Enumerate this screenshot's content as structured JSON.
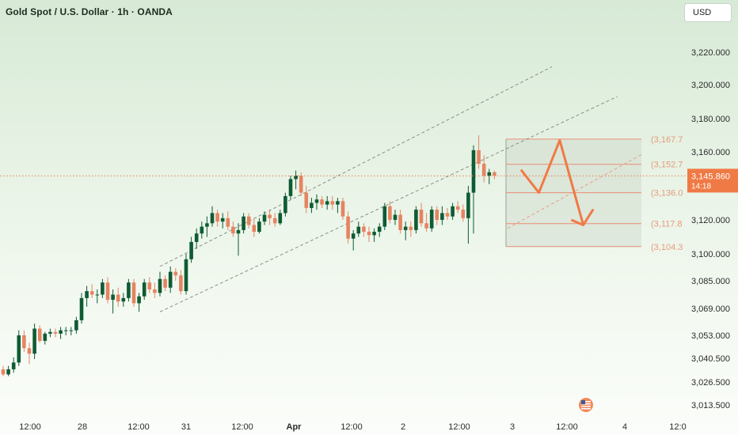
{
  "header": {
    "title": "Gold Spot / U.S. Dollar · 1h · OANDA",
    "currency": "USD"
  },
  "price_tag": {
    "price": "3,145.860",
    "countdown": "14:18"
  },
  "colors": {
    "up": "#0e5b34",
    "down": "#e58462",
    "projection": "#f07a45",
    "channel": "#8a8f86",
    "level_line": "#e98e74",
    "price_tag_bg": "#f07a45"
  },
  "icons": {
    "flag": "us-flag-icon"
  },
  "chart_data": {
    "type": "candlestick",
    "title": "Gold Spot / U.S. Dollar · 1h · OANDA",
    "y_ticks": [
      "3,220.000",
      "3,200.000",
      "3,180.000",
      "3,160.000",
      "3,120.000",
      "3,100.000",
      "3,085.000",
      "3,069.000",
      "3,053.000",
      "3,040.500",
      "3,026.500",
      "3,013.500"
    ],
    "x_ticks": [
      "12:00",
      "28",
      "12:00",
      "31",
      "12:00",
      "Apr",
      "12:00",
      "2",
      "12:00",
      "3",
      "12:00",
      "4",
      "12:0"
    ],
    "last_price": 3145.86,
    "levels": [
      {
        "label": "(3,167.7",
        "value": 3167.7
      },
      {
        "label": "(3,152.7",
        "value": 3152.7
      },
      {
        "label": "(3,136.0",
        "value": 3136.0
      },
      {
        "label": "(3,117.8",
        "value": 3117.8
      },
      {
        "label": "(3,104.3",
        "value": 3104.3
      }
    ],
    "candles": [
      [
        3034,
        3036,
        3030,
        3031
      ],
      [
        3031,
        3036,
        3030,
        3034
      ],
      [
        3034,
        3041,
        3032,
        3038
      ],
      [
        3038,
        3056,
        3036,
        3053
      ],
      [
        3053,
        3056,
        3044,
        3046
      ],
      [
        3046,
        3049,
        3037,
        3043
      ],
      [
        3043,
        3060,
        3040,
        3057
      ],
      [
        3057,
        3059,
        3049,
        3050
      ],
      [
        3050,
        3055,
        3048,
        3054
      ],
      [
        3054,
        3057,
        3052,
        3055
      ],
      [
        3055,
        3057,
        3052,
        3054
      ],
      [
        3054,
        3058,
        3051,
        3056
      ],
      [
        3056,
        3058,
        3053,
        3056
      ],
      [
        3056,
        3058,
        3053,
        3056
      ],
      [
        3056,
        3064,
        3054,
        3062
      ],
      [
        3062,
        3078,
        3060,
        3075
      ],
      [
        3075,
        3082,
        3070,
        3079
      ],
      [
        3079,
        3083,
        3075,
        3077
      ],
      [
        3077,
        3080,
        3072,
        3077
      ],
      [
        3077,
        3086,
        3075,
        3084
      ],
      [
        3084,
        3087,
        3072,
        3074
      ],
      [
        3074,
        3080,
        3066,
        3077
      ],
      [
        3077,
        3081,
        3070,
        3073
      ],
      [
        3073,
        3078,
        3070,
        3075
      ],
      [
        3075,
        3086,
        3073,
        3084
      ],
      [
        3084,
        3086,
        3070,
        3072
      ],
      [
        3072,
        3078,
        3067,
        3076
      ],
      [
        3076,
        3086,
        3074,
        3084
      ],
      [
        3084,
        3087,
        3078,
        3080
      ],
      [
        3080,
        3084,
        3075,
        3078
      ],
      [
        3078,
        3090,
        3076,
        3086
      ],
      [
        3086,
        3088,
        3079,
        3081
      ],
      [
        3081,
        3093,
        3078,
        3090
      ],
      [
        3090,
        3092,
        3085,
        3088
      ],
      [
        3088,
        3091,
        3077,
        3079
      ],
      [
        3079,
        3100,
        3077,
        3097
      ],
      [
        3097,
        3110,
        3095,
        3107
      ],
      [
        3107,
        3115,
        3103,
        3112
      ],
      [
        3112,
        3119,
        3109,
        3116
      ],
      [
        3116,
        3122,
        3110,
        3118
      ],
      [
        3118,
        3128,
        3116,
        3124
      ],
      [
        3124,
        3126,
        3116,
        3119
      ],
      [
        3119,
        3124,
        3115,
        3121
      ],
      [
        3121,
        3125,
        3114,
        3116
      ],
      [
        3116,
        3119,
        3110,
        3112
      ],
      [
        3112,
        3118,
        3099,
        3114
      ],
      [
        3114,
        3124,
        3112,
        3122
      ],
      [
        3122,
        3124,
        3115,
        3117
      ],
      [
        3117,
        3121,
        3110,
        3113
      ],
      [
        3113,
        3121,
        3112,
        3119
      ],
      [
        3119,
        3125,
        3117,
        3123
      ],
      [
        3123,
        3126,
        3117,
        3121
      ],
      [
        3121,
        3124,
        3116,
        3118
      ],
      [
        3118,
        3126,
        3117,
        3124
      ],
      [
        3124,
        3136,
        3122,
        3134
      ],
      [
        3134,
        3146,
        3132,
        3144
      ],
      [
        3144,
        3149,
        3138,
        3146
      ],
      [
        3146,
        3148,
        3134,
        3136
      ],
      [
        3136,
        3140,
        3124,
        3127
      ],
      [
        3127,
        3133,
        3124,
        3130
      ],
      [
        3130,
        3135,
        3126,
        3132
      ],
      [
        3132,
        3134,
        3127,
        3129
      ],
      [
        3129,
        3134,
        3126,
        3131
      ],
      [
        3131,
        3134,
        3126,
        3129
      ],
      [
        3129,
        3133,
        3124,
        3131
      ],
      [
        3131,
        3133,
        3120,
        3122
      ],
      [
        3122,
        3125,
        3106,
        3109
      ],
      [
        3109,
        3114,
        3102,
        3112
      ],
      [
        3112,
        3119,
        3110,
        3116
      ],
      [
        3116,
        3118,
        3110,
        3113
      ],
      [
        3113,
        3116,
        3107,
        3111
      ],
      [
        3111,
        3115,
        3107,
        3113
      ],
      [
        3113,
        3118,
        3110,
        3116
      ],
      [
        3116,
        3130,
        3114,
        3128
      ],
      [
        3128,
        3131,
        3118,
        3120
      ],
      [
        3120,
        3126,
        3117,
        3123
      ],
      [
        3123,
        3126,
        3112,
        3114
      ],
      [
        3114,
        3119,
        3108,
        3116
      ],
      [
        3116,
        3119,
        3110,
        3114
      ],
      [
        3114,
        3128,
        3112,
        3126
      ],
      [
        3126,
        3130,
        3116,
        3118
      ],
      [
        3118,
        3124,
        3113,
        3115
      ],
      [
        3115,
        3128,
        3113,
        3126
      ],
      [
        3126,
        3128,
        3117,
        3120
      ],
      [
        3120,
        3128,
        3117,
        3124
      ],
      [
        3124,
        3127,
        3120,
        3122
      ],
      [
        3122,
        3130,
        3120,
        3128
      ],
      [
        3128,
        3131,
        3124,
        3126
      ],
      [
        3126,
        3129,
        3119,
        3121
      ],
      [
        3121,
        3140,
        3106,
        3136
      ],
      [
        3136,
        3164,
        3112,
        3161
      ],
      [
        3161,
        3170,
        3150,
        3153
      ],
      [
        3153,
        3158,
        3142,
        3146
      ],
      [
        3146,
        3150,
        3141,
        3148
      ],
      [
        3148,
        3149,
        3144,
        3146
      ]
    ],
    "projection": [
      {
        "x_index": 99.2,
        "y": 3149
      },
      {
        "x_index": 102.5,
        "y": 3136
      },
      {
        "x_index": 106.5,
        "y": 3167
      },
      {
        "x_index": 111.0,
        "y": 3117
      },
      {
        "x_index": 112.5,
        "y": 3122
      }
    ]
  }
}
